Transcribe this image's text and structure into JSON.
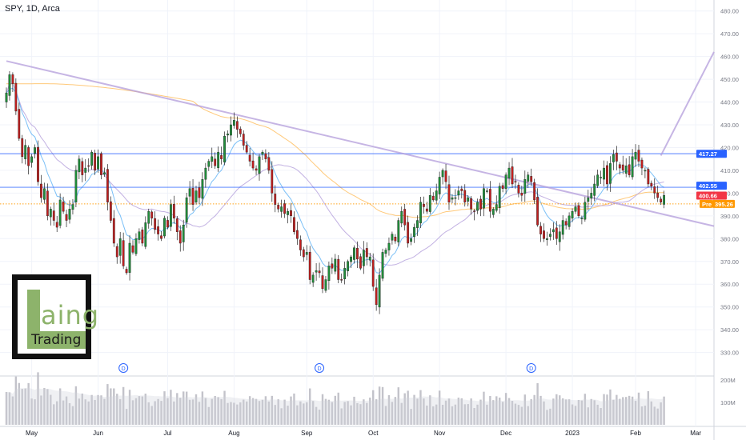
{
  "header": {
    "symbol_text": "SPY, 1D, Arca"
  },
  "logo": {
    "big_letter": "L",
    "word_rest": "aing",
    "word2": "Trading",
    "color": "#8db36b"
  },
  "price_tags": [
    {
      "label": "417.27",
      "value": 417.27,
      "bg": "#2962ff"
    },
    {
      "label": "402.55",
      "value": 402.55,
      "bg": "#2962ff"
    },
    {
      "label": "400.66",
      "value": 400.66,
      "bg": "#f23645"
    },
    {
      "label": "Pre",
      "value": 395.26,
      "bg": "#ff9800"
    },
    {
      "label": "395.26",
      "value": 395.26,
      "bg": "#ff9800"
    }
  ],
  "volume_axis": {
    "ticks": [
      {
        "label": "200M",
        "value": 200
      },
      {
        "label": "100M",
        "value": 100
      }
    ]
  },
  "events": [
    {
      "label": "D",
      "index": 37
    },
    {
      "label": "D",
      "index": 99
    },
    {
      "label": "D",
      "index": 166
    }
  ],
  "chart_data": {
    "type": "candlestick",
    "title": "SPY, 1D, Arca",
    "x_ticks": [
      {
        "label": "May",
        "index": 8
      },
      {
        "label": "Jun",
        "index": 29
      },
      {
        "label": "Jul",
        "index": 51
      },
      {
        "label": "Aug",
        "index": 72
      },
      {
        "label": "Sep",
        "index": 95
      },
      {
        "label": "Oct",
        "index": 116
      },
      {
        "label": "Nov",
        "index": 137
      },
      {
        "label": "Dec",
        "index": 158
      },
      {
        "label": "2023",
        "index": 179
      },
      {
        "label": "Feb",
        "index": 199
      },
      {
        "label": "Mar",
        "index": 218
      }
    ],
    "y_ticks": [
      330,
      340,
      350,
      360,
      370,
      380,
      390,
      400,
      410,
      420,
      430,
      440,
      450,
      460,
      470,
      480
    ],
    "ylim": [
      326,
      482
    ],
    "horizontal_lines": [
      {
        "value": 417.27,
        "color": "#2962ff"
      },
      {
        "value": 402.55,
        "color": "#2962ff"
      },
      {
        "value": 395.26,
        "color": "#ff9800",
        "style": "dotted"
      }
    ],
    "trend_lines": [
      {
        "x1": 0,
        "y1": 458,
        "x2": 230,
        "y2": 385.5
      },
      {
        "x1": 207,
        "y1": 416.5,
        "x2": 230,
        "y2": 462
      }
    ],
    "close": [
      444,
      452,
      448,
      436,
      424,
      416,
      421,
      412,
      416,
      420,
      405,
      398,
      402,
      390,
      393,
      388,
      385,
      397,
      392,
      388,
      393,
      395,
      410,
      415,
      408,
      411,
      412,
      418,
      410,
      416,
      408,
      409,
      396,
      388,
      378,
      372,
      380,
      368,
      365,
      378,
      374,
      380,
      383,
      378,
      387,
      392,
      389,
      384,
      382,
      380,
      389,
      385,
      395,
      389,
      383,
      378,
      386,
      398,
      402,
      395,
      401,
      398,
      406,
      411,
      414,
      416,
      412,
      418,
      415,
      425,
      426,
      430,
      432,
      428,
      426,
      421,
      418,
      414,
      411,
      410,
      416,
      418,
      415,
      410,
      400,
      395,
      393,
      394,
      391,
      392,
      390,
      383,
      380,
      375,
      372,
      374,
      362,
      364,
      366,
      365,
      358,
      362,
      368,
      367,
      371,
      362,
      362,
      367,
      370,
      372,
      376,
      371,
      367,
      375,
      372,
      372,
      359,
      351,
      364,
      374,
      375,
      378,
      382,
      379,
      388,
      392,
      386,
      378,
      380,
      385,
      388,
      396,
      394,
      392,
      399,
      397,
      401,
      407,
      410,
      405,
      396,
      398,
      398,
      401,
      401,
      396,
      398,
      393,
      392,
      396,
      393,
      402,
      401,
      392,
      393,
      395,
      403,
      402,
      408,
      411,
      404,
      405,
      400,
      399,
      406,
      408,
      405,
      397,
      386,
      382,
      380,
      380,
      382,
      384,
      380,
      383,
      388,
      386,
      390,
      392,
      394,
      390,
      389,
      396,
      398,
      400,
      404,
      408,
      407,
      411,
      404,
      413,
      417,
      414,
      411,
      410,
      412,
      408,
      416,
      418,
      414,
      411,
      410,
      404,
      403,
      400,
      398,
      396,
      399
    ]
  }
}
